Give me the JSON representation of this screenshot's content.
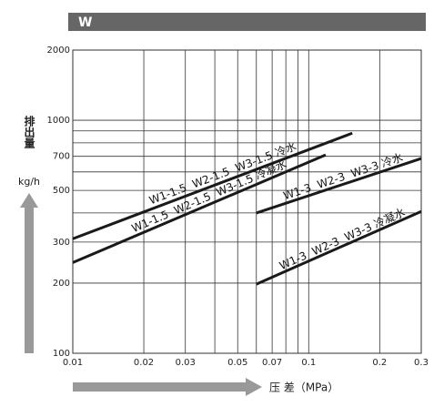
{
  "chart_data": {
    "type": "line",
    "title": "W",
    "xlabel": "压 差（MPa）",
    "ylabel": "排出量",
    "yunit": "kg/h",
    "xscale": "log",
    "yscale": "log",
    "xlim": [
      0.01,
      0.3
    ],
    "ylim": [
      100,
      2000
    ],
    "xticks": [
      0.01,
      0.02,
      0.03,
      0.05,
      0.07,
      0.1,
      0.2,
      0.3
    ],
    "yticks": [
      100,
      200,
      300,
      500,
      700,
      1000,
      2000
    ],
    "xgrid": [
      0.04,
      0.06,
      0.08,
      0.09
    ],
    "ygrid": [
      400,
      600,
      800,
      900
    ],
    "grid": true,
    "series": [
      {
        "name": "W1-1.5  W2-1.5  W3-1.5 冷水",
        "color": "#1a1a1a",
        "x": [
          0.01,
          0.153
        ],
        "values": [
          310,
          880
        ]
      },
      {
        "name": "W1-1.5  W2-1.5  W3-1.5 冷凝水",
        "color": "#1a1a1a",
        "x": [
          0.01,
          0.118
        ],
        "values": [
          245,
          710
        ]
      },
      {
        "name": "W1-3  W2-3  W3-3 冷水",
        "color": "#1a1a1a",
        "x": [
          0.06,
          0.3
        ],
        "values": [
          400,
          685
        ]
      },
      {
        "name": "W1-3  W2-3  W3-3 冷凝水",
        "color": "#1a1a1a",
        "x": [
          0.06,
          0.3
        ],
        "values": [
          198,
          406
        ]
      }
    ]
  }
}
